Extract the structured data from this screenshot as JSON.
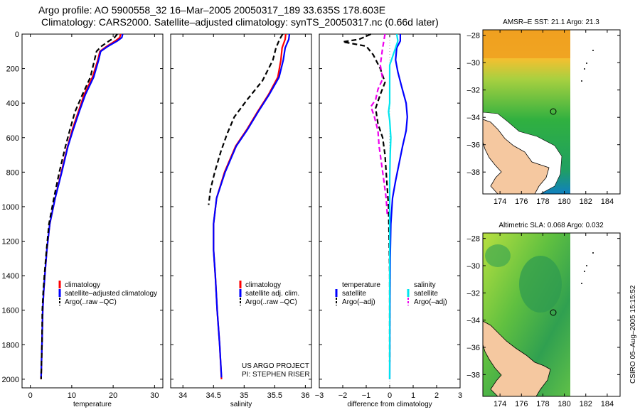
{
  "header": {
    "title_line1": "Argo profile: AO 5900558_32 16–Mar–2005 20050317_189 33.635S 178.603E",
    "title_line2": "Climatology: CARS2000. Satellite–adjusted climatology: synTS_20050317.nc (0.66d later)"
  },
  "colors": {
    "climatology": "#ff0000",
    "satellite": "#0000ff",
    "argo": "#000000",
    "sat_salinity": "#00e5ee",
    "argo_salinity": "#ee00ee"
  },
  "chart_data": [
    {
      "type": "line",
      "xlabel": "temperature",
      "xlim": [
        -2,
        32
      ],
      "xticks": [
        0,
        10,
        20,
        30
      ],
      "ylim": [
        0,
        2050
      ],
      "yticks": [
        0,
        200,
        400,
        600,
        800,
        1000,
        1200,
        1400,
        1600,
        1800,
        2000
      ],
      "y_inverted": true,
      "legend": [
        "climatology",
        "satellite–adjusted climatology",
        "Argo(..raw –QC)"
      ],
      "series": [
        {
          "name": "climatology",
          "color": "#ff0000",
          "dash": "solid",
          "points": [
            [
              21.8,
              0
            ],
            [
              21.6,
              20
            ],
            [
              20.5,
              40
            ],
            [
              18.5,
              70
            ],
            [
              16.8,
              100
            ],
            [
              16.3,
              150
            ],
            [
              15.0,
              250
            ],
            [
              13.0,
              350
            ],
            [
              11.6,
              450
            ],
            [
              10.2,
              550
            ],
            [
              9.0,
              650
            ],
            [
              7.5,
              800
            ],
            [
              6.0,
              950
            ],
            [
              4.7,
              1100
            ],
            [
              4.0,
              1250
            ],
            [
              3.5,
              1400
            ],
            [
              3.2,
              1500
            ],
            [
              3.0,
              1600
            ],
            [
              2.8,
              1800
            ],
            [
              2.6,
              2000
            ]
          ]
        },
        {
          "name": "satellite–adjusted climatology",
          "color": "#0000ff",
          "dash": "solid",
          "points": [
            [
              22.3,
              0
            ],
            [
              22.1,
              20
            ],
            [
              21.0,
              40
            ],
            [
              18.8,
              70
            ],
            [
              17.0,
              100
            ],
            [
              16.5,
              150
            ],
            [
              15.3,
              250
            ],
            [
              13.3,
              350
            ],
            [
              11.8,
              450
            ],
            [
              10.4,
              550
            ],
            [
              9.1,
              650
            ],
            [
              7.6,
              800
            ],
            [
              6.0,
              950
            ],
            [
              4.7,
              1100
            ],
            [
              4.0,
              1250
            ],
            [
              3.5,
              1400
            ],
            [
              3.2,
              1500
            ],
            [
              3.0,
              1600
            ],
            [
              2.8,
              1800
            ],
            [
              2.6,
              1990
            ]
          ]
        },
        {
          "name": "Argo(..raw –QC)",
          "color": "#000000",
          "dash": "dashed",
          "points": [
            [
              21.0,
              0
            ],
            [
              20.3,
              20
            ],
            [
              19.0,
              40
            ],
            [
              17.2,
              70
            ],
            [
              16.0,
              100
            ],
            [
              15.5,
              150
            ],
            [
              14.5,
              250
            ],
            [
              12.6,
              350
            ],
            [
              10.8,
              450
            ],
            [
              9.6,
              550
            ],
            [
              8.5,
              650
            ],
            [
              7.0,
              800
            ],
            [
              5.7,
              950
            ],
            [
              4.5,
              1100
            ],
            [
              3.9,
              1250
            ],
            [
              3.4,
              1400
            ],
            [
              3.1,
              1500
            ],
            [
              2.9,
              1600
            ],
            [
              2.8,
              1800
            ],
            [
              2.6,
              2000
            ]
          ]
        }
      ]
    },
    {
      "type": "line",
      "xlabel": "salinity",
      "xlim": [
        33.8,
        36.1
      ],
      "xticks": [
        34,
        34.5,
        35,
        35.5,
        36
      ],
      "ylim": [
        0,
        2050
      ],
      "y_inverted": true,
      "legend": [
        "climatology",
        "satellite adj. clim.",
        "Argo(..raw –QC)"
      ],
      "annotation": [
        "US ARGO PROJECT",
        "PI: STEPHEN RISER"
      ],
      "series": [
        {
          "name": "climatology",
          "color": "#ff0000",
          "dash": "solid",
          "points": [
            [
              35.68,
              0
            ],
            [
              35.67,
              30
            ],
            [
              35.62,
              80
            ],
            [
              35.6,
              150
            ],
            [
              35.55,
              250
            ],
            [
              35.4,
              350
            ],
            [
              35.22,
              450
            ],
            [
              35.05,
              550
            ],
            [
              34.86,
              650
            ],
            [
              34.68,
              800
            ],
            [
              34.55,
              950
            ],
            [
              34.5,
              1100
            ],
            [
              34.5,
              1250
            ],
            [
              34.53,
              1400
            ],
            [
              34.56,
              1600
            ],
            [
              34.6,
              1800
            ],
            [
              34.63,
              2000
            ]
          ]
        },
        {
          "name": "satellite adj. clim.",
          "color": "#0000ff",
          "dash": "solid",
          "points": [
            [
              35.74,
              0
            ],
            [
              35.73,
              30
            ],
            [
              35.67,
              80
            ],
            [
              35.64,
              150
            ],
            [
              35.57,
              250
            ],
            [
              35.41,
              350
            ],
            [
              35.23,
              450
            ],
            [
              35.06,
              550
            ],
            [
              34.87,
              650
            ],
            [
              34.69,
              800
            ],
            [
              34.55,
              950
            ],
            [
              34.5,
              1100
            ],
            [
              34.5,
              1250
            ],
            [
              34.53,
              1400
            ],
            [
              34.56,
              1600
            ],
            [
              34.6,
              1800
            ],
            [
              34.63,
              1990
            ]
          ]
        },
        {
          "name": "Argo(..raw –QC)",
          "color": "#000000",
          "dash": "dashed",
          "points": [
            [
              35.63,
              0
            ],
            [
              35.58,
              30
            ],
            [
              35.52,
              80
            ],
            [
              35.47,
              150
            ],
            [
              35.3,
              270
            ],
            [
              35.05,
              380
            ],
            [
              34.84,
              480
            ],
            [
              34.72,
              580
            ],
            [
              34.62,
              680
            ],
            [
              34.52,
              800
            ],
            [
              34.45,
              900
            ],
            [
              34.42,
              990
            ]
          ]
        }
      ]
    },
    {
      "type": "line",
      "xlabel": "difference from climatology",
      "xlim": [
        -3,
        3
      ],
      "xticks": [
        -3,
        -2,
        -1,
        0,
        1,
        2,
        3
      ],
      "ylim": [
        0,
        2050
      ],
      "y_inverted": true,
      "legend": [
        {
          "group": "temperature",
          "items": [
            "satellite",
            "Argo(–adj)"
          ]
        },
        {
          "group": "salinity",
          "items": [
            "satellite",
            "Argo(–adj)"
          ]
        }
      ],
      "series": [
        {
          "name": "temperature satellite",
          "color": "#0000ff",
          "dash": "solid",
          "points": [
            [
              0.45,
              0
            ],
            [
              0.45,
              40
            ],
            [
              0.3,
              80
            ],
            [
              0.25,
              150
            ],
            [
              0.35,
              220
            ],
            [
              0.5,
              300
            ],
            [
              0.7,
              400
            ],
            [
              0.75,
              480
            ],
            [
              0.7,
              560
            ],
            [
              0.55,
              650
            ],
            [
              0.4,
              750
            ],
            [
              0.25,
              850
            ],
            [
              0.12,
              950
            ],
            [
              0.05,
              1100
            ],
            [
              0.02,
              1300
            ],
            [
              0.01,
              1600
            ],
            [
              0.0,
              2000
            ]
          ]
        },
        {
          "name": "temperature Argo(–adj)",
          "color": "#000000",
          "dash": "dashed",
          "points": [
            [
              -0.8,
              0
            ],
            [
              -1.3,
              30
            ],
            [
              -2.0,
              45
            ],
            [
              -1.0,
              70
            ],
            [
              -0.7,
              120
            ],
            [
              -0.4,
              200
            ],
            [
              -0.2,
              280
            ],
            [
              -0.4,
              350
            ],
            [
              -0.6,
              430
            ],
            [
              -0.5,
              520
            ],
            [
              -0.3,
              600
            ],
            [
              -0.2,
              700
            ],
            [
              -0.15,
              800
            ],
            [
              -0.1,
              900
            ],
            [
              -0.05,
              1000
            ],
            [
              -0.02,
              1200
            ],
            [
              0.0,
              1400
            ],
            [
              0.0,
              1700
            ],
            [
              0.0,
              1900
            ]
          ]
        },
        {
          "name": "salinity satellite",
          "color": "#00e5ee",
          "dash": "solid",
          "points": [
            [
              0.3,
              0
            ],
            [
              0.35,
              40
            ],
            [
              0.2,
              100
            ],
            [
              0.0,
              180
            ],
            [
              0.0,
              300
            ],
            [
              0.0,
              400
            ],
            [
              -0.05,
              450
            ],
            [
              0.0,
              500
            ],
            [
              0.05,
              600
            ],
            [
              0.02,
              700
            ],
            [
              0.0,
              850
            ],
            [
              0.0,
              1000
            ],
            [
              0.0,
              1300
            ],
            [
              0.0,
              1600
            ],
            [
              0.0,
              2000
            ]
          ]
        },
        {
          "name": "salinity Argo(–adj)",
          "color": "#ee00ee",
          "dash": "dashed",
          "points": [
            [
              -0.2,
              0
            ],
            [
              -0.3,
              80
            ],
            [
              -0.4,
              180
            ],
            [
              -0.3,
              260
            ],
            [
              -0.5,
              320
            ],
            [
              -0.6,
              380
            ],
            [
              -0.8,
              420
            ],
            [
              -0.65,
              480
            ],
            [
              -0.5,
              560
            ],
            [
              -0.45,
              650
            ],
            [
              -0.35,
              750
            ],
            [
              -0.25,
              850
            ],
            [
              -0.15,
              950
            ],
            [
              -0.1,
              1050
            ]
          ]
        }
      ]
    }
  ],
  "maps": [
    {
      "title": "AMSR–E SST: 21.1 Argo: 21.3",
      "yticks": [
        "–28",
        "–30",
        "–32",
        "–34",
        "–36",
        "–38"
      ],
      "xticks": [
        "174",
        "176",
        "178",
        "180",
        "182",
        "184"
      ]
    },
    {
      "title": "Altimetric SLA: 0.068 Argo: 0.032",
      "yticks": [
        "–28",
        "–30",
        "–32",
        "–34",
        "–36",
        "–38"
      ],
      "xticks": [
        "174",
        "176",
        "178",
        "180",
        "182",
        "184"
      ]
    }
  ],
  "footer": {
    "stamp": "CSIRO 05–Aug–2005 15:15:52"
  }
}
